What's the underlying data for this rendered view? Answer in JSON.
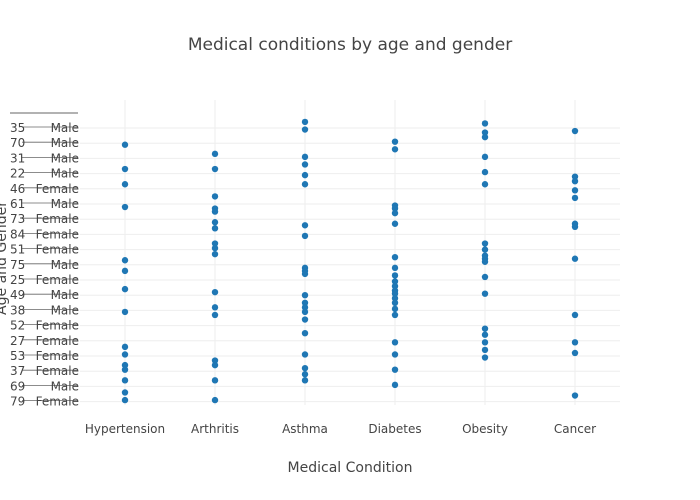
{
  "chart_data": {
    "type": "scatter",
    "title": "Medical conditions by age and gender",
    "xlabel": "Medical Condition",
    "ylabel": "Age and Gender",
    "categories": [
      "Hypertension",
      "Arthritis",
      "Asthma",
      "Diabetes",
      "Obesity",
      "Cancer"
    ],
    "y_ticks": [
      {
        "age": "35",
        "gender": "Male"
      },
      {
        "age": "70",
        "gender": "Male"
      },
      {
        "age": "31",
        "gender": "Male"
      },
      {
        "age": "22",
        "gender": "Male"
      },
      {
        "age": "46",
        "gender": "Female"
      },
      {
        "age": "61",
        "gender": "Male"
      },
      {
        "age": "73",
        "gender": "Female"
      },
      {
        "age": "84",
        "gender": "Female"
      },
      {
        "age": "51",
        "gender": "Female"
      },
      {
        "age": "75",
        "gender": "Male"
      },
      {
        "age": "25",
        "gender": "Female"
      },
      {
        "age": "49",
        "gender": "Male"
      },
      {
        "age": "38",
        "gender": "Male"
      },
      {
        "age": "52",
        "gender": "Female"
      },
      {
        "age": "27",
        "gender": "Female"
      },
      {
        "age": "53",
        "gender": "Female"
      },
      {
        "age": "37",
        "gender": "Female"
      },
      {
        "age": "69",
        "gender": "Male"
      },
      {
        "age": "79",
        "gender": "Female"
      }
    ],
    "y_range": [
      -0.5,
      19.5
    ],
    "marker_color": "#1f77b4",
    "series": [
      {
        "name": "Hypertension",
        "category_index": 0,
        "y": [
          1.1,
          2.7,
          3.7,
          5.2,
          8.7,
          9.4,
          10.6,
          12.1,
          14.4,
          14.9,
          15.6,
          15.9,
          16.6,
          17.4,
          17.9
        ]
      },
      {
        "name": "Arthritis",
        "category_index": 1,
        "y": [
          1.7,
          2.7,
          4.5,
          5.3,
          5.5,
          6.2,
          6.6,
          7.6,
          7.9,
          8.3,
          10.8,
          11.8,
          12.3,
          15.3,
          15.6,
          16.6,
          17.9
        ]
      },
      {
        "name": "Asthma",
        "category_index": 2,
        "y": [
          -0.4,
          0.1,
          1.9,
          2.4,
          3.1,
          3.7,
          6.4,
          7.1,
          9.2,
          9.4,
          9.6,
          11.0,
          11.5,
          11.8,
          12.1,
          12.6,
          13.5,
          14.9,
          15.8,
          16.2,
          16.6
        ]
      },
      {
        "name": "Diabetes",
        "category_index": 3,
        "y": [
          0.9,
          1.4,
          5.1,
          5.3,
          5.6,
          6.3,
          8.5,
          9.2,
          9.7,
          10.1,
          10.4,
          10.7,
          10.9,
          11.2,
          11.5,
          11.9,
          12.3,
          14.1,
          14.9,
          15.9,
          16.9
        ]
      },
      {
        "name": "Obesity",
        "category_index": 4,
        "y": [
          -0.3,
          0.3,
          0.6,
          1.9,
          2.9,
          3.7,
          7.6,
          8.0,
          8.4,
          8.6,
          8.8,
          9.8,
          10.9,
          13.2,
          13.6,
          14.1,
          14.6,
          15.1
        ]
      },
      {
        "name": "Cancer",
        "category_index": 5,
        "y": [
          0.2,
          3.2,
          3.5,
          4.1,
          4.6,
          6.3,
          6.5,
          8.6,
          12.3,
          14.1,
          14.8,
          17.6
        ]
      }
    ]
  }
}
